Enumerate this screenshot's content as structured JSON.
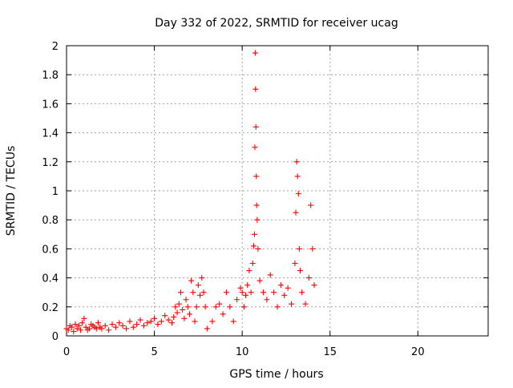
{
  "chart_data": {
    "type": "scatter",
    "title": "Day 332 of 2022, SRMTID for receiver ucag",
    "xlabel": "GPS time / hours",
    "ylabel": "SRMTID / TECUs",
    "xlim": [
      0,
      24
    ],
    "ylim": [
      0,
      2
    ],
    "grid": true,
    "marker": "+",
    "x_ticks": [
      0,
      5,
      10,
      15,
      20
    ],
    "x_tick_labels": [
      "0",
      "5",
      "10",
      "15",
      "20"
    ],
    "y_ticks": [
      0,
      0.2,
      0.4,
      0.6,
      0.8,
      1,
      1.2,
      1.4,
      1.6,
      1.8,
      2
    ],
    "y_tick_labels": [
      "0",
      "0.2",
      "0.4",
      "0.6",
      "0.8",
      "1",
      "1.2",
      "1.4",
      "1.6",
      "1.8",
      "2"
    ],
    "series": [
      {
        "name": "SRMTID ucag",
        "color": "#ff0000",
        "x": [
          0.0,
          0.1,
          0.2,
          0.3,
          0.4,
          0.5,
          0.6,
          0.7,
          0.8,
          0.9,
          1.0,
          1.1,
          1.2,
          1.3,
          1.4,
          1.5,
          1.6,
          1.7,
          1.8,
          1.9,
          2.0,
          2.2,
          2.4,
          2.6,
          2.8,
          3.0,
          3.2,
          3.4,
          3.6,
          3.8,
          4.0,
          4.2,
          4.4,
          4.6,
          4.8,
          5.0,
          5.2,
          5.4,
          5.6,
          5.8,
          6.0,
          6.1,
          6.2,
          6.3,
          6.4,
          6.5,
          6.6,
          6.7,
          6.8,
          6.9,
          7.0,
          7.1,
          7.2,
          7.3,
          7.4,
          7.5,
          7.6,
          7.7,
          7.8,
          7.9,
          8.0,
          8.3,
          8.5,
          8.7,
          8.9,
          9.1,
          9.3,
          9.5,
          9.7,
          9.9,
          10.0,
          10.1,
          10.2,
          10.3,
          10.4,
          10.5,
          10.6,
          10.65,
          10.7,
          10.72,
          10.74,
          10.76,
          10.78,
          10.8,
          10.82,
          10.85,
          10.9,
          11.0,
          11.2,
          11.4,
          11.6,
          11.8,
          12.0,
          12.2,
          12.4,
          12.6,
          12.8,
          13.0,
          13.05,
          13.1,
          13.15,
          13.2,
          13.25,
          13.3,
          13.4,
          13.6,
          13.8,
          13.9,
          14.0,
          14.1
        ],
        "y": [
          0.05,
          0.04,
          0.07,
          0.06,
          0.03,
          0.08,
          0.05,
          0.07,
          0.04,
          0.09,
          0.12,
          0.06,
          0.04,
          0.05,
          0.08,
          0.07,
          0.06,
          0.05,
          0.09,
          0.06,
          0.05,
          0.07,
          0.04,
          0.08,
          0.06,
          0.09,
          0.07,
          0.05,
          0.1,
          0.06,
          0.08,
          0.11,
          0.07,
          0.09,
          0.1,
          0.12,
          0.08,
          0.1,
          0.14,
          0.11,
          0.09,
          0.13,
          0.2,
          0.16,
          0.22,
          0.3,
          0.18,
          0.12,
          0.25,
          0.2,
          0.15,
          0.38,
          0.3,
          0.1,
          0.2,
          0.35,
          0.28,
          0.4,
          0.3,
          0.2,
          0.05,
          0.1,
          0.2,
          0.22,
          0.15,
          0.3,
          0.2,
          0.1,
          0.25,
          0.33,
          0.3,
          0.2,
          0.28,
          0.35,
          0.45,
          0.3,
          0.5,
          0.62,
          0.7,
          1.3,
          1.95,
          1.7,
          1.44,
          1.1,
          0.9,
          0.8,
          0.6,
          0.38,
          0.3,
          0.25,
          0.42,
          0.3,
          0.2,
          0.35,
          0.28,
          0.33,
          0.22,
          0.5,
          0.85,
          1.2,
          1.1,
          0.98,
          0.6,
          0.45,
          0.3,
          0.22,
          0.4,
          0.9,
          0.6,
          0.35
        ]
      }
    ]
  }
}
